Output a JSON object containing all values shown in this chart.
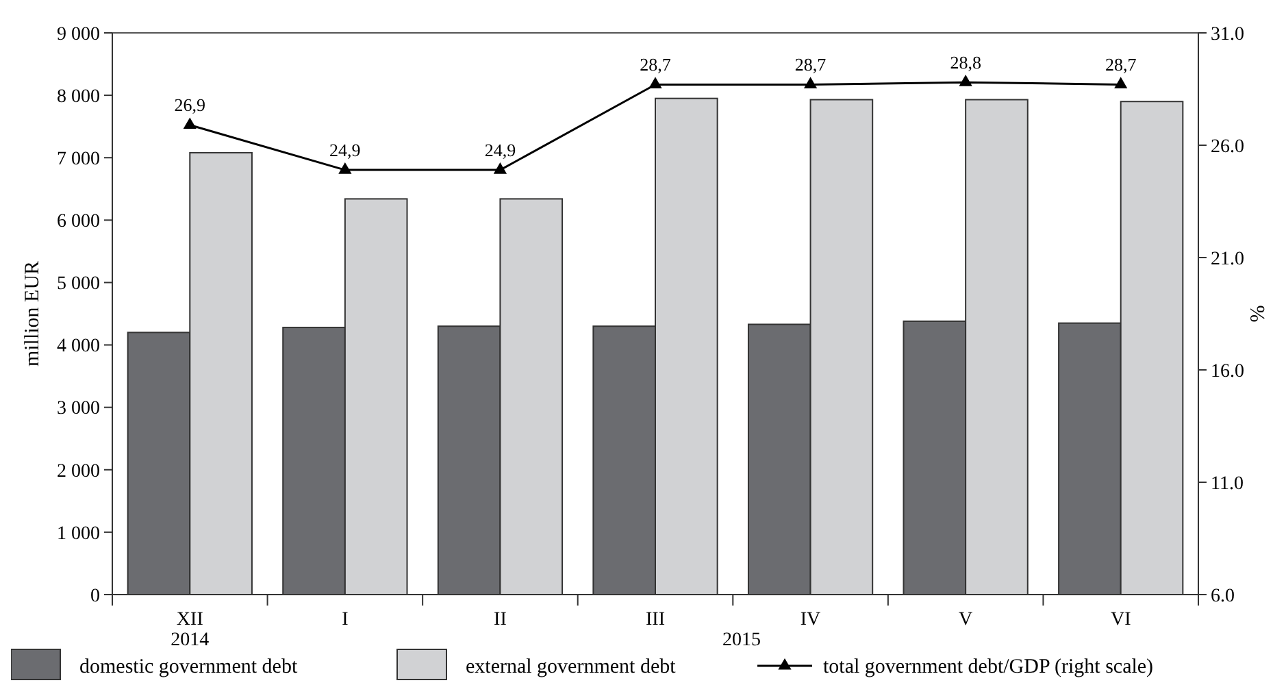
{
  "chart_data": {
    "type": "bar",
    "ylabel": "million EUR",
    "y2label": "%",
    "categories": [
      "XII",
      "I",
      "II",
      "III",
      "IV",
      "V",
      "VI"
    ],
    "series": [
      {
        "name": "domestic government debt",
        "color": "#6b6c70",
        "values": [
          4200,
          4280,
          4300,
          4300,
          4330,
          4380,
          4350
        ]
      },
      {
        "name": "external government debt",
        "color": "#d1d2d4",
        "values": [
          7080,
          6340,
          6340,
          7950,
          7930,
          7930,
          7900
        ]
      },
      {
        "name": "total government debt/GDP (right scale)",
        "type": "line",
        "axis": "y2",
        "color": "#000000",
        "marker": "triangle",
        "values": [
          26.9,
          24.9,
          24.9,
          28.7,
          28.7,
          28.8,
          28.7
        ],
        "value_labels": [
          "26,9",
          "24,9",
          "24,9",
          "28,7",
          "28,7",
          "28,8",
          "28,7"
        ]
      }
    ],
    "ylim": [
      0,
      9000
    ],
    "yticks": [
      {
        "value": 0,
        "label": "0"
      },
      {
        "value": 1000,
        "label": "1 000"
      },
      {
        "value": 2000,
        "label": "2 000"
      },
      {
        "value": 3000,
        "label": "3 000"
      },
      {
        "value": 4000,
        "label": "4 000"
      },
      {
        "value": 5000,
        "label": "5 000"
      },
      {
        "value": 6000,
        "label": "6 000"
      },
      {
        "value": 7000,
        "label": "7 000"
      },
      {
        "value": 8000,
        "label": "8 000"
      },
      {
        "value": 9000,
        "label": "9 000"
      }
    ],
    "y2lim": [
      6,
      31
    ],
    "y2ticks": [
      {
        "value": 6,
        "label": "6.0"
      },
      {
        "value": 11,
        "label": "11.0"
      },
      {
        "value": 16,
        "label": "16.0"
      },
      {
        "value": 21,
        "label": "21.0"
      },
      {
        "value": 26,
        "label": "26.0"
      },
      {
        "value": 31,
        "label": "31.0"
      }
    ],
    "annotations": [
      "2014",
      "2015"
    ],
    "grid": false,
    "legend": "bottom"
  }
}
